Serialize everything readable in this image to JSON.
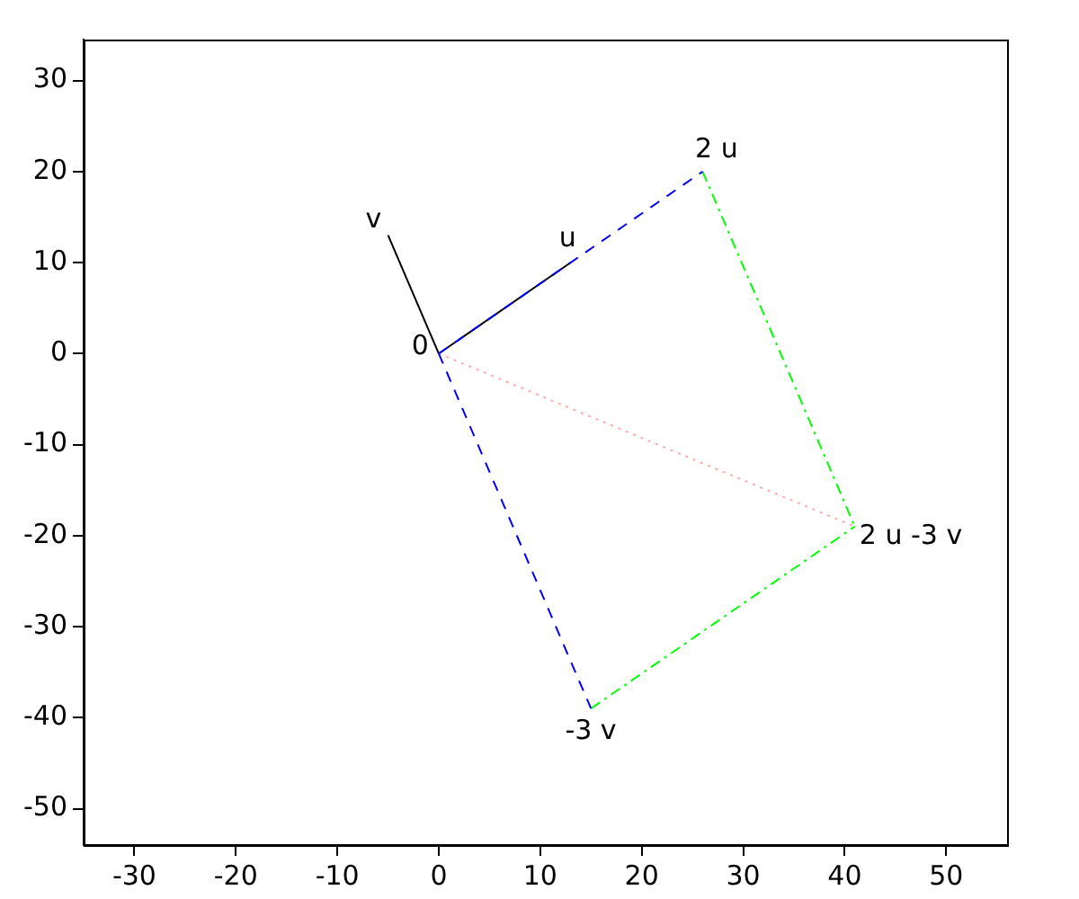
{
  "chart_data": {
    "type": "line",
    "xlim": [
      -35,
      56
    ],
    "ylim": [
      -54,
      34.5
    ],
    "xticks": [
      -30,
      -20,
      -10,
      0,
      10,
      20,
      30,
      40,
      50
    ],
    "yticks": [
      -50,
      -40,
      -30,
      -20,
      -10,
      0,
      10,
      20,
      30
    ],
    "grid": false,
    "legend": false,
    "marker": "none",
    "series": [
      {
        "color": "#0000ff",
        "line_style": "dashed",
        "x": [
          0,
          26
        ],
        "values": [
          0,
          20
        ]
      },
      {
        "color": "#0000ff",
        "line_style": "dashed",
        "x": [
          0,
          15
        ],
        "values": [
          0,
          -39
        ]
      },
      {
        "color": "#00ff00",
        "line_style": "dashdot",
        "x": [
          26,
          41
        ],
        "values": [
          20,
          -19
        ]
      },
      {
        "color": "#00ff00",
        "line_style": "dashdot",
        "x": [
          15,
          41
        ],
        "values": [
          -39,
          -19
        ]
      },
      {
        "color": "#ffaaaa",
        "line_style": "dotted",
        "x": [
          0,
          41
        ],
        "values": [
          0,
          -19
        ]
      },
      {
        "color": "#000000",
        "line_style": "solid",
        "x": [
          0,
          13
        ],
        "values": [
          0,
          10
        ]
      },
      {
        "color": "#000000",
        "line_style": "solid",
        "x": [
          0,
          -5
        ],
        "values": [
          0,
          13
        ]
      }
    ],
    "annotations": [
      {
        "text": "v",
        "x": -5,
        "y": 13
      },
      {
        "text": "u",
        "x": 13,
        "y": 10
      },
      {
        "text": "2 u",
        "x": 26,
        "y": 20
      },
      {
        "text": "0",
        "x": 0,
        "y": 0
      },
      {
        "text": "2 u -3 v",
        "x": 41,
        "y": -19
      },
      {
        "text": "-3 v",
        "x": 15,
        "y": -39
      }
    ]
  }
}
